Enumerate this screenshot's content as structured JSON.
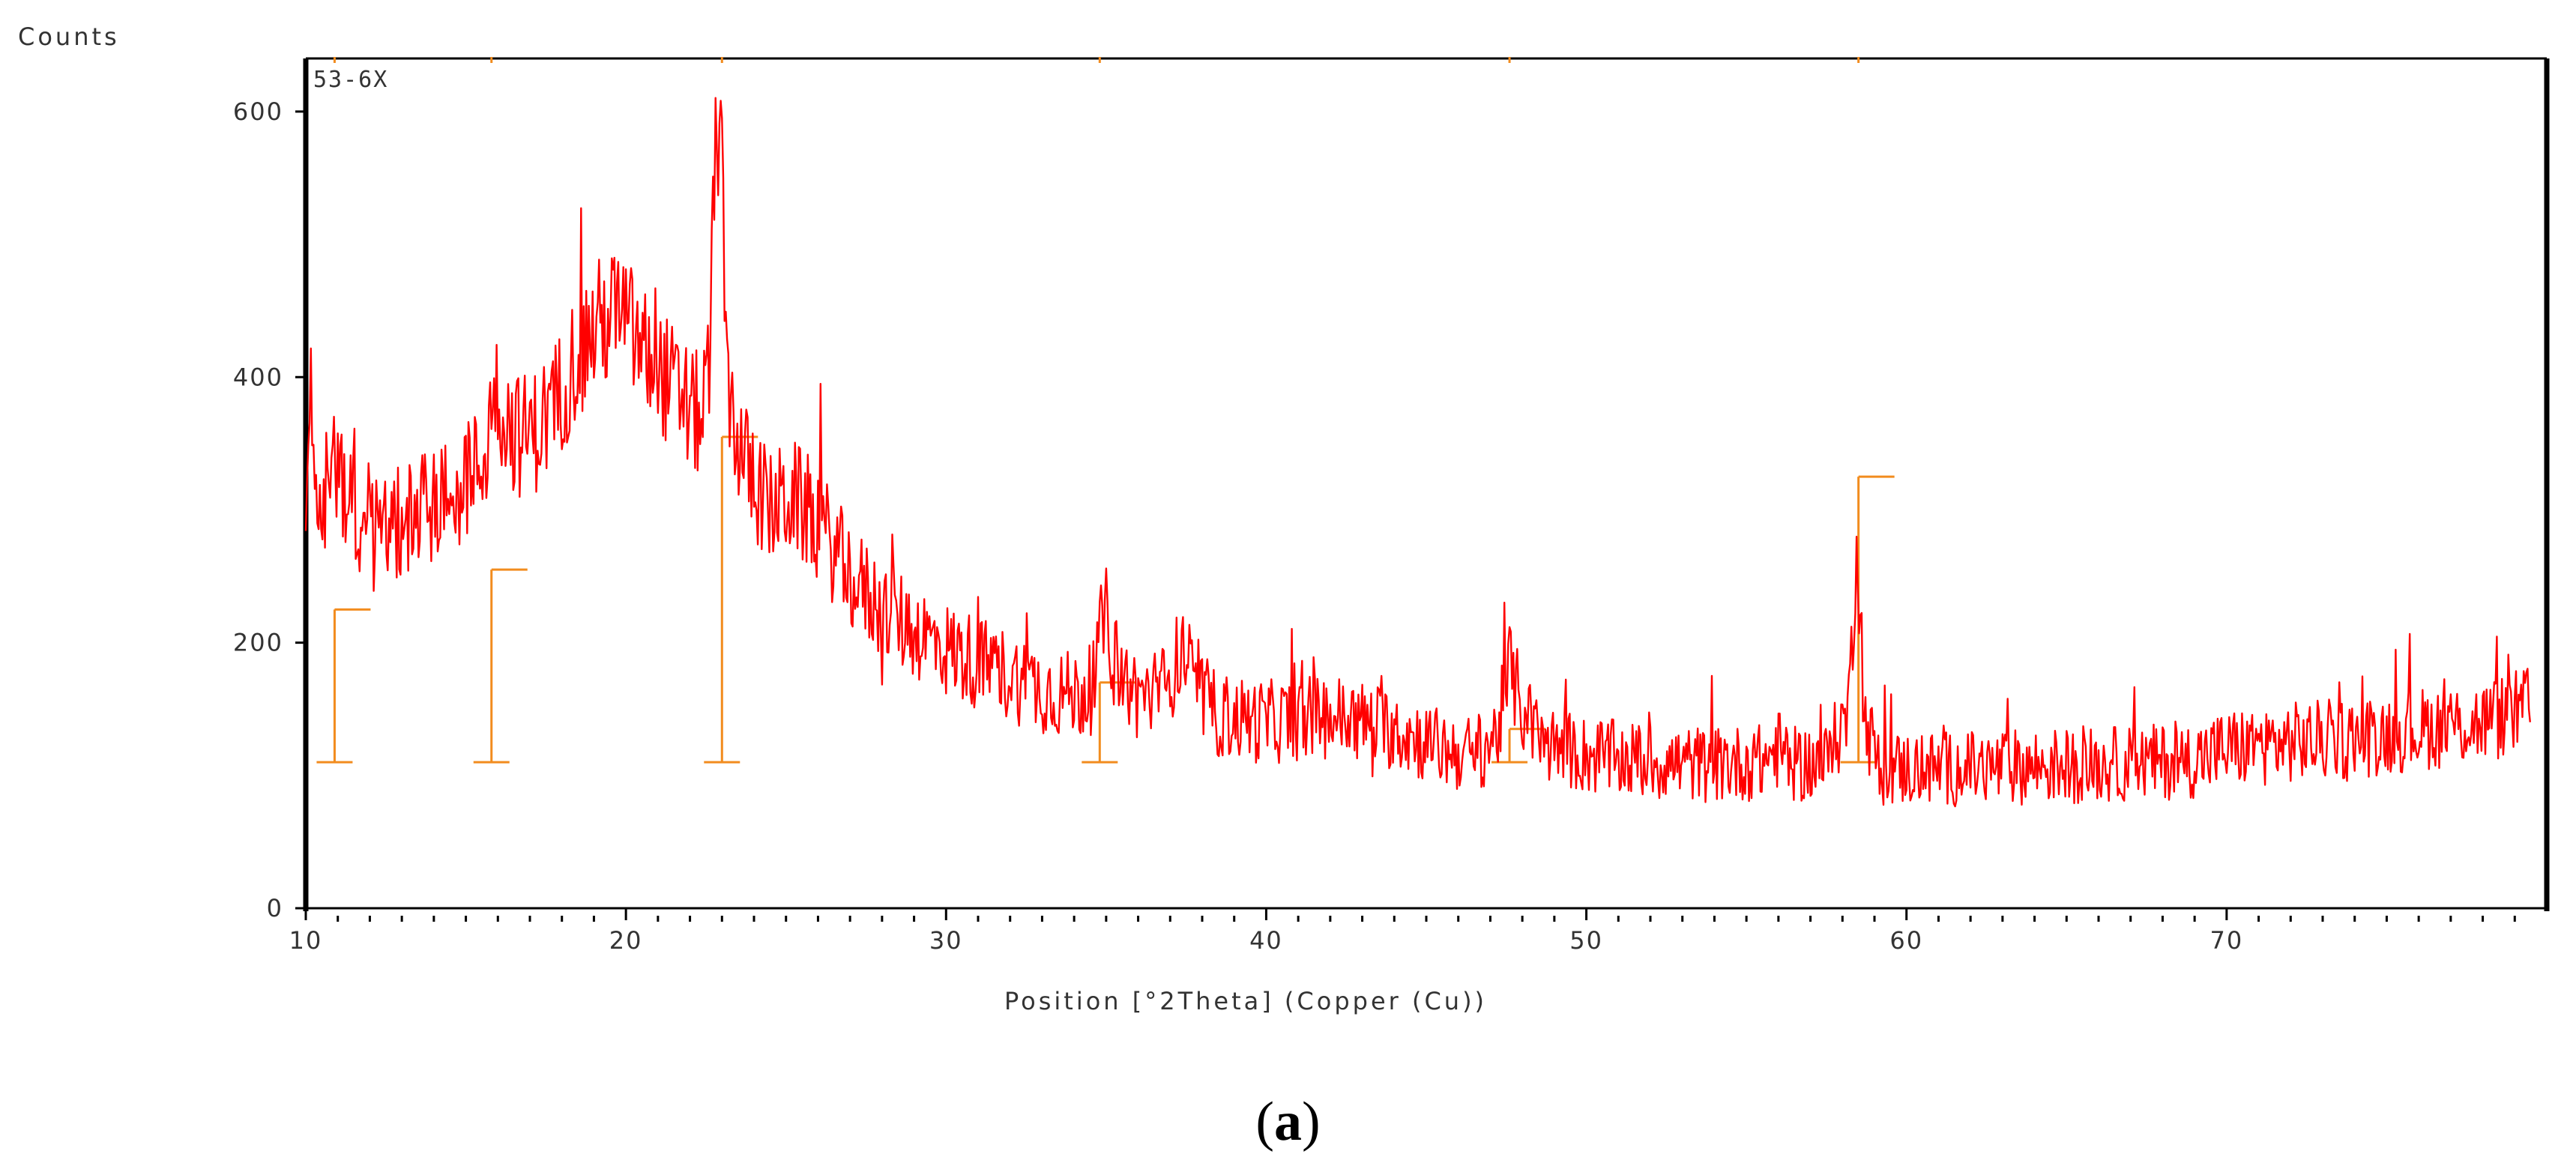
{
  "chart_data": {
    "type": "line",
    "sample_label": "53-6X",
    "ylabel": "Counts",
    "xlabel": "Position [°2Theta] (Copper (Cu))",
    "xlim": [
      10,
      80
    ],
    "ylim": [
      0,
      640
    ],
    "x_ticks": [
      10,
      20,
      30,
      40,
      50,
      60,
      70
    ],
    "y_ticks": [
      0,
      200,
      400,
      600
    ],
    "grid": false,
    "colors": {
      "pattern": "#ff0000",
      "reference": "#f28c1e",
      "axes": "#000000"
    },
    "series": [
      {
        "type": "line",
        "color": "#ff0000",
        "x": [
          10,
          10.5,
          11,
          11.5,
          12,
          12.5,
          13,
          14,
          15,
          15.6,
          15.9,
          16.2,
          16.7,
          17.2,
          17.8,
          18.5,
          19.2,
          19.8,
          20.5,
          21.2,
          21.8,
          22.3,
          22.6,
          22.8,
          22.95,
          23.1,
          23.4,
          23.8,
          24.5,
          25.2,
          26,
          27,
          28,
          29,
          30,
          31,
          32,
          33,
          34,
          34.6,
          34.95,
          35.3,
          36,
          36.8,
          37.4,
          37.8,
          38.5,
          40,
          42,
          44,
          45.5,
          46.5,
          47.2,
          47.6,
          48,
          48.6,
          50,
          52,
          54,
          55.5,
          56,
          56.5,
          57.5,
          58.2,
          58.45,
          58.7,
          59.2,
          60,
          62,
          64,
          66,
          68,
          69,
          70,
          72,
          74,
          76,
          78,
          79.5
        ],
        "y": [
          330,
          310,
          335,
          300,
          280,
          285,
          290,
          305,
          320,
          340,
          395,
          370,
          355,
          360,
          380,
          420,
          440,
          450,
          420,
          400,
          380,
          370,
          400,
          570,
          610,
          420,
          360,
          330,
          300,
          310,
          290,
          250,
          225,
          210,
          195,
          185,
          175,
          165,
          160,
          165,
          225,
          180,
          160,
          165,
          195,
          165,
          145,
          140,
          145,
          135,
          120,
          115,
          130,
          180,
          150,
          125,
          115,
          110,
          108,
          110,
          120,
          108,
          110,
          150,
          285,
          140,
          105,
          105,
          105,
          107,
          108,
          110,
          112,
          120,
          125,
          128,
          135,
          140,
          150
        ]
      },
      {
        "type": "reference_sticks",
        "color": "#f28c1e",
        "x": [
          10.9,
          15.8,
          23.0,
          34.8,
          47.6,
          58.5
        ],
        "y": [
          225,
          255,
          355,
          170,
          135,
          325
        ]
      }
    ]
  },
  "caption": {
    "open": "(",
    "letter": "a",
    "close": ")"
  }
}
